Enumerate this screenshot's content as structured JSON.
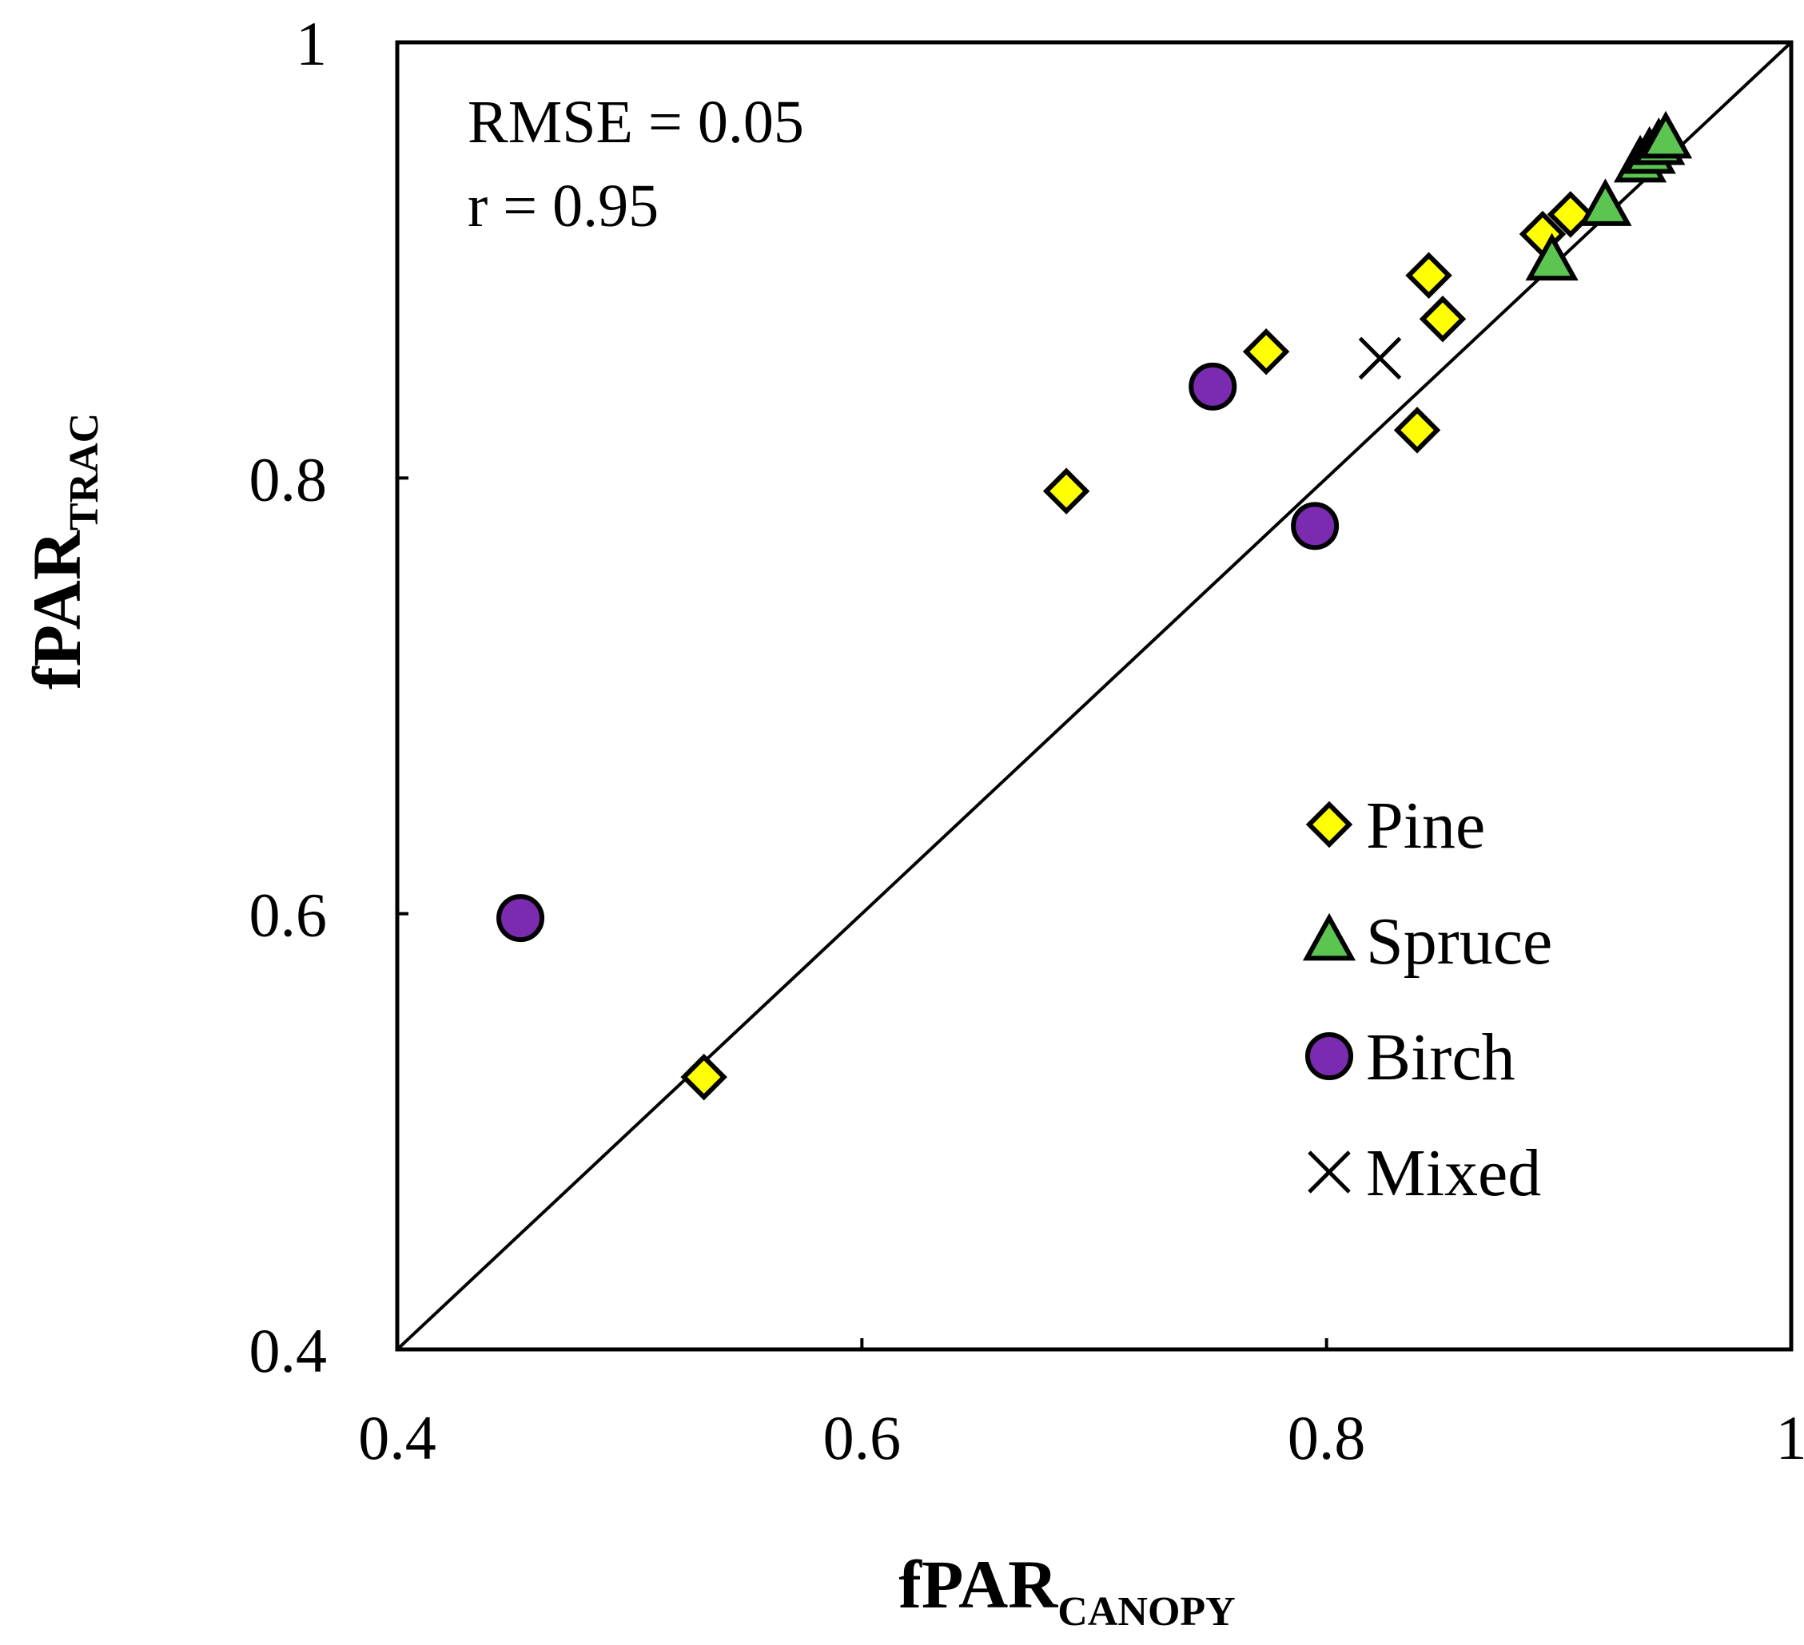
{
  "chart_data": {
    "type": "scatter",
    "title": "",
    "xlabel": {
      "main": "fPAR",
      "sub": "CANOPY"
    },
    "ylabel": {
      "main": "fPAR",
      "sub": "TRAC"
    },
    "xlim": [
      0.4,
      1.0
    ],
    "ylim": [
      0.4,
      1.0
    ],
    "x_ticks": [
      {
        "value": 0.4,
        "label": "0.4"
      },
      {
        "value": 0.6,
        "label": "0.6"
      },
      {
        "value": 0.8,
        "label": "0.8"
      },
      {
        "value": 1.0,
        "label": "1"
      }
    ],
    "y_ticks": [
      {
        "value": 0.4,
        "label": "0.4"
      },
      {
        "value": 0.6,
        "label": "0.6"
      },
      {
        "value": 0.8,
        "label": "0.8"
      },
      {
        "value": 1.0,
        "label": "1"
      }
    ],
    "grid": false,
    "reference_line": "1:1",
    "annotations": {
      "rmse": "RMSE = 0.05",
      "r": "r = 0.95"
    },
    "legend_position": "bottom-right",
    "series": [
      {
        "name": "Pine",
        "marker": "diamond",
        "color": "#FFFF00",
        "points": [
          {
            "x": 0.532,
            "y": 0.525
          },
          {
            "x": 0.688,
            "y": 0.794
          },
          {
            "x": 0.774,
            "y": 0.858
          },
          {
            "x": 0.839,
            "y": 0.822
          },
          {
            "x": 0.844,
            "y": 0.893
          },
          {
            "x": 0.85,
            "y": 0.873
          },
          {
            "x": 0.893,
            "y": 0.912
          },
          {
            "x": 0.905,
            "y": 0.921
          }
        ]
      },
      {
        "name": "Spruce",
        "marker": "triangle",
        "color": "#5CC552",
        "points": [
          {
            "x": 0.897,
            "y": 0.9
          },
          {
            "x": 0.92,
            "y": 0.925
          },
          {
            "x": 0.935,
            "y": 0.945
          },
          {
            "x": 0.939,
            "y": 0.949
          },
          {
            "x": 0.943,
            "y": 0.953
          },
          {
            "x": 0.946,
            "y": 0.956
          }
        ]
      },
      {
        "name": "Birch",
        "marker": "circle",
        "color": "#7B2BB0",
        "points": [
          {
            "x": 0.453,
            "y": 0.598
          },
          {
            "x": 0.751,
            "y": 0.842
          },
          {
            "x": 0.795,
            "y": 0.778
          }
        ]
      },
      {
        "name": "Mixed",
        "marker": "x",
        "color": "#000000",
        "points": [
          {
            "x": 0.823,
            "y": 0.855
          }
        ]
      }
    ]
  }
}
